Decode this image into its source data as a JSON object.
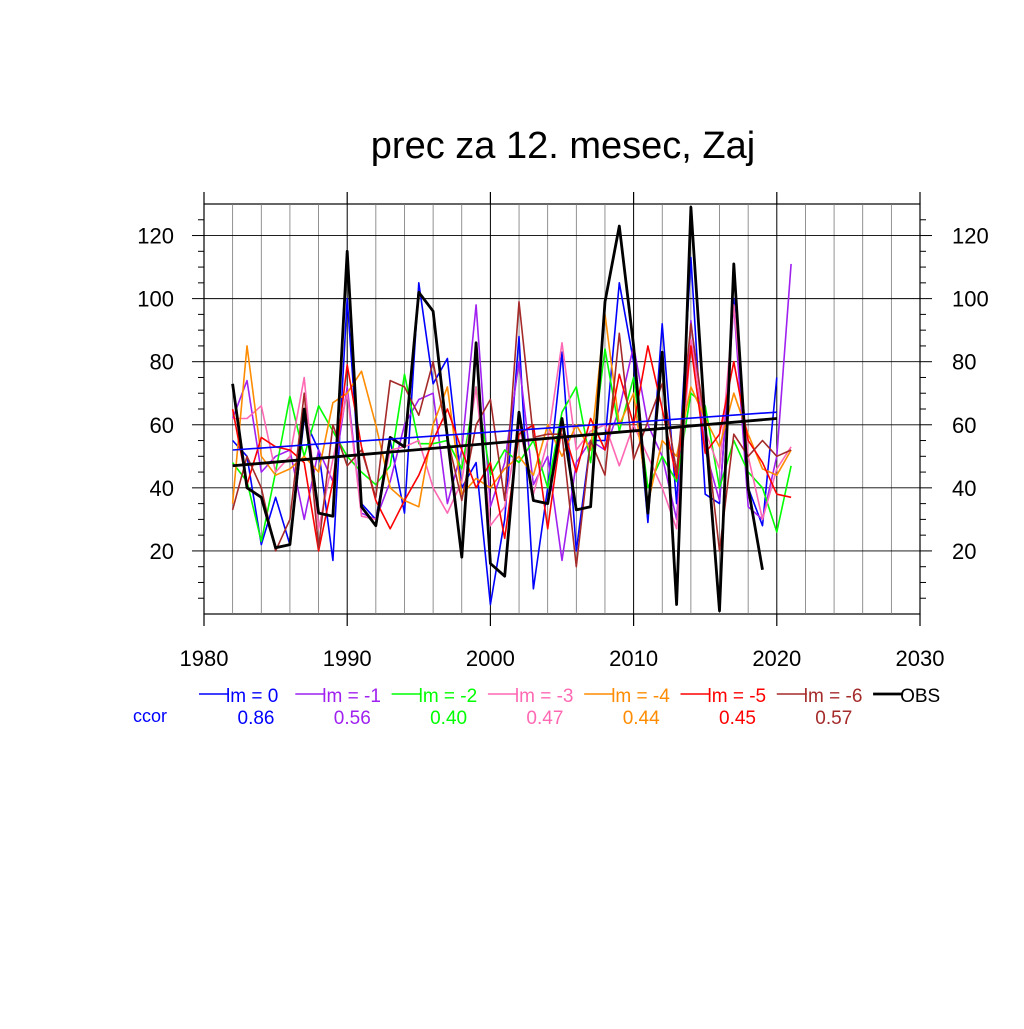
{
  "chart_data": {
    "type": "line",
    "title": "prec za 12. mesec, Zaj",
    "xlabel": "",
    "ylabel": "",
    "xlim": [
      1980,
      2030
    ],
    "ylim": [
      0,
      130
    ],
    "x_ticks": [
      1980,
      1990,
      2000,
      2010,
      2020,
      2030
    ],
    "y_ticks": [
      20,
      40,
      60,
      80,
      100,
      120
    ],
    "grid": true,
    "legend_position": "bottom",
    "ccor_label": "ccor",
    "ccor_color": "#0000ff",
    "series": [
      {
        "name": "lm = 0",
        "color": "#0000ff",
        "width": 1.6,
        "ccor": "0.86",
        "x": [
          1982,
          1983,
          1984,
          1985,
          1986,
          1987,
          1988,
          1989,
          1990,
          1991,
          1992,
          1993,
          1994,
          1995,
          1996,
          1997,
          1998,
          1999,
          2000,
          2001,
          2002,
          2003,
          2004,
          2005,
          2006,
          2007,
          2008,
          2009,
          2010,
          2011,
          2012,
          2013,
          2014,
          2015,
          2016,
          2017,
          2018,
          2019,
          2020
        ],
        "y": [
          55,
          50,
          22,
          37,
          22,
          62,
          52,
          17,
          100,
          35,
          30,
          55,
          32,
          105,
          73,
          81,
          40,
          48,
          3,
          30,
          88,
          8,
          40,
          83,
          20,
          55,
          55,
          105,
          80,
          29,
          92,
          35,
          113,
          38,
          35,
          100,
          40,
          28,
          75
        ]
      },
      {
        "name": "lm = -1",
        "color": "#a020f0",
        "width": 1.6,
        "ccor": "0.56",
        "x": [
          1982,
          1983,
          1984,
          1985,
          1986,
          1987,
          1988,
          1989,
          1990,
          1991,
          1992,
          1993,
          1994,
          1995,
          1996,
          1997,
          1998,
          1999,
          2000,
          2001,
          2002,
          2003,
          2004,
          2005,
          2006,
          2007,
          2008,
          2009,
          2010,
          2011,
          2012,
          2013,
          2014,
          2015,
          2016,
          2017,
          2018,
          2019,
          2020,
          2021
        ],
        "y": [
          62,
          74,
          45,
          50,
          52,
          30,
          52,
          42,
          72,
          32,
          30,
          42,
          60,
          68,
          70,
          35,
          52,
          98,
          34,
          48,
          80,
          41,
          50,
          17,
          48,
          55,
          52,
          65,
          85,
          60,
          50,
          30,
          93,
          52,
          36,
          98,
          34,
          30,
          50,
          111
        ]
      },
      {
        "name": "lm = -2",
        "color": "#00ff00",
        "width": 1.6,
        "ccor": "0.40",
        "x": [
          1982,
          1983,
          1984,
          1985,
          1986,
          1987,
          1988,
          1989,
          1990,
          1991,
          1992,
          1993,
          1994,
          1995,
          1996,
          1997,
          1998,
          1999,
          2000,
          2001,
          2002,
          2003,
          2004,
          2005,
          2006,
          2007,
          2008,
          2009,
          2010,
          2011,
          2012,
          2013,
          2014,
          2015,
          2016,
          2017,
          2018,
          2019,
          2020,
          2021
        ],
        "y": [
          48,
          42,
          23,
          45,
          69,
          50,
          66,
          58,
          50,
          45,
          41,
          47,
          76,
          54,
          54,
          55,
          46,
          72,
          44,
          52,
          48,
          55,
          40,
          64,
          72,
          48,
          84,
          58,
          75,
          40,
          50,
          42,
          70,
          66,
          40,
          55,
          45,
          40,
          26,
          47
        ]
      },
      {
        "name": "lm = -3",
        "color": "#ff69b4",
        "width": 1.6,
        "ccor": "0.47",
        "x": [
          1982,
          1983,
          1984,
          1985,
          1986,
          1987,
          1988,
          1989,
          1990,
          1991,
          1992,
          1993,
          1994,
          1995,
          1996,
          1997,
          1998,
          1999,
          2000,
          2001,
          2002,
          2003,
          2004,
          2005,
          2006,
          2007,
          2008,
          2009,
          2010,
          2011,
          2012,
          2013,
          2014,
          2015,
          2016,
          2017,
          2018,
          2019,
          2020,
          2021
        ],
        "y": [
          62,
          62,
          66,
          45,
          50,
          75,
          27,
          49,
          70,
          31,
          30,
          52,
          53,
          55,
          40,
          32,
          42,
          72,
          28,
          34,
          60,
          38,
          55,
          86,
          52,
          58,
          60,
          47,
          60,
          50,
          40,
          27,
          87,
          58,
          46,
          98,
          50,
          30,
          46,
          53
        ]
      },
      {
        "name": "lm = -4",
        "color": "#ff8c00",
        "width": 1.6,
        "ccor": "0.44",
        "x": [
          1982,
          1983,
          1984,
          1985,
          1986,
          1987,
          1988,
          1989,
          1990,
          1991,
          1992,
          1993,
          1994,
          1995,
          1996,
          1997,
          1998,
          1999,
          2000,
          2001,
          2002,
          2003,
          2004,
          2005,
          2006,
          2007,
          2008,
          2009,
          2010,
          2011,
          2012,
          2013,
          2014,
          2015,
          2016,
          2017,
          2018,
          2019,
          2020,
          2021
        ],
        "y": [
          35,
          85,
          50,
          44,
          46,
          50,
          45,
          67,
          70,
          77,
          60,
          40,
          36,
          34,
          60,
          72,
          38,
          43,
          40,
          46,
          50,
          44,
          60,
          50,
          60,
          52,
          95,
          60,
          70,
          35,
          55,
          50,
          72,
          62,
          53,
          70,
          57,
          46,
          44,
          52
        ]
      },
      {
        "name": "lm = -5",
        "color": "#ff0000",
        "width": 1.6,
        "ccor": "0.45",
        "x": [
          1982,
          1983,
          1984,
          1985,
          1986,
          1987,
          1988,
          1989,
          1990,
          1991,
          1992,
          1993,
          1994,
          1995,
          1996,
          1997,
          1998,
          1999,
          2000,
          2001,
          2002,
          2003,
          2004,
          2005,
          2006,
          2007,
          2008,
          2009,
          2010,
          2011,
          2012,
          2013,
          2014,
          2015,
          2016,
          2017,
          2018,
          2019,
          2020,
          2021
        ],
        "y": [
          65,
          41,
          56,
          53,
          52,
          48,
          20,
          42,
          79,
          53,
          36,
          27,
          36,
          44,
          55,
          65,
          52,
          40,
          48,
          24,
          57,
          60,
          27,
          60,
          45,
          62,
          52,
          76,
          60,
          85,
          65,
          43,
          85,
          51,
          57,
          80,
          55,
          48,
          38,
          37
        ]
      },
      {
        "name": "lm = -6",
        "color": "#a52a2a",
        "width": 1.6,
        "ccor": "0.57",
        "x": [
          1982,
          1983,
          1984,
          1985,
          1986,
          1987,
          1988,
          1989,
          1990,
          1991,
          1992,
          1993,
          1994,
          1995,
          1996,
          1997,
          1998,
          1999,
          2000,
          2001,
          2002,
          2003,
          2004,
          2005,
          2006,
          2007,
          2008,
          2009,
          2010,
          2011,
          2012,
          2013,
          2014,
          2015,
          2016,
          2017,
          2018,
          2019,
          2020,
          2021
        ],
        "y": [
          33,
          50,
          40,
          20,
          30,
          70,
          21,
          60,
          47,
          52,
          37,
          74,
          72,
          63,
          80,
          56,
          36,
          60,
          68,
          36,
          99,
          56,
          57,
          57,
          15,
          55,
          44,
          89,
          49,
          61,
          73,
          45,
          92,
          60,
          20,
          57,
          50,
          55,
          50,
          52
        ]
      },
      {
        "name": "OBS",
        "color": "#000000",
        "width": 2.8,
        "ccor": "",
        "x": [
          1982,
          1983,
          1984,
          1985,
          1986,
          1987,
          1988,
          1989,
          1990,
          1991,
          1992,
          1993,
          1994,
          1995,
          1996,
          1997,
          1998,
          1999,
          2000,
          2001,
          2002,
          2003,
          2004,
          2005,
          2006,
          2007,
          2008,
          2009,
          2010,
          2011,
          2012,
          2013,
          2014,
          2015,
          2016,
          2017,
          2018,
          2019
        ],
        "y": [
          73,
          40,
          37,
          21,
          22,
          65,
          32,
          31,
          115,
          34,
          28,
          56,
          53,
          102,
          96,
          56,
          18,
          86,
          16,
          12,
          64,
          36,
          35,
          62,
          33,
          34,
          99,
          123,
          85,
          32,
          83,
          3,
          129,
          60,
          1,
          111,
          40,
          14
        ]
      }
    ],
    "trend_lines": [
      {
        "name": "lm = 0 trend",
        "color": "#0000ff",
        "width": 1.6,
        "x": [
          1982,
          2020
        ],
        "y": [
          52,
          64
        ]
      },
      {
        "name": "OBS trend",
        "color": "#000000",
        "width": 2.8,
        "x": [
          1982,
          2020
        ],
        "y": [
          47,
          62
        ]
      }
    ]
  }
}
